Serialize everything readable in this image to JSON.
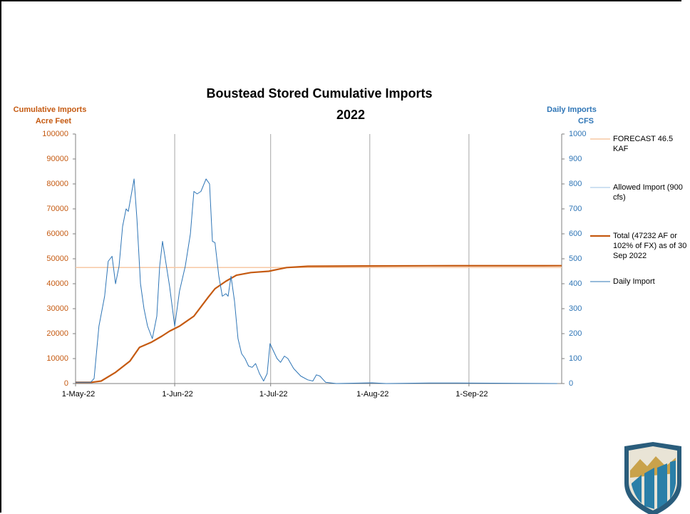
{
  "chart_data": {
    "type": "line",
    "title": [
      "Boustead Stored Cumulative Imports",
      "2022"
    ],
    "y_label": [
      "Cumulative Imports",
      "Acre Feet"
    ],
    "y2_label": [
      "Daily Imports",
      "CFS"
    ],
    "xlim": [
      0,
      152
    ],
    "xticks": [
      {
        "value": 0,
        "label": "1-May-22"
      },
      {
        "value": 31,
        "label": "1-Jun-22"
      },
      {
        "value": 61,
        "label": "1-Jul-22"
      },
      {
        "value": 92,
        "label": "1-Aug-22"
      },
      {
        "value": 123,
        "label": "1-Sep-22"
      }
    ],
    "ylim": [
      0,
      100000
    ],
    "yticks": [
      0,
      10000,
      20000,
      30000,
      40000,
      50000,
      60000,
      70000,
      80000,
      90000,
      100000
    ],
    "y2lim": [
      0,
      1000
    ],
    "y2ticks": [
      0,
      100,
      200,
      300,
      400,
      500,
      600,
      700,
      800,
      900,
      1000
    ],
    "grid": "x",
    "legend": "right",
    "series": [
      {
        "name": "FORECAST 46.5 KAF",
        "color": "#f7c8a4",
        "width": 1.5,
        "x": [
          0,
          152
        ],
        "values": [
          46500,
          46500
        ]
      },
      {
        "name": "Allowed Import (900 cfs)",
        "color": "#9dc3e6",
        "width": 1,
        "axis": "y2",
        "x": [],
        "values": []
      },
      {
        "name": "Total (47232 AF or 102% of FX) as of 30 Sep 2022",
        "color": "#c55a11",
        "width": 2.2,
        "x": [
          0,
          5,
          8,
          12.5,
          17,
          20,
          23.6,
          27,
          29.4,
          32.5,
          37,
          41.4,
          43.6,
          47,
          50.3,
          54.8,
          60.4,
          66,
          72.6,
          90,
          110,
          152
        ],
        "values": [
          500,
          500,
          1000,
          4500,
          9000,
          14500,
          16500,
          19000,
          21000,
          23000,
          27000,
          34500,
          38000,
          41000,
          43400,
          44500,
          45000,
          46500,
          47000,
          47100,
          47200,
          47232
        ]
      },
      {
        "name": "Daily Import",
        "color": "#2e75b6",
        "width": 1,
        "axis": "y2",
        "x": [
          0,
          4.7,
          5.8,
          7.3,
          9.1,
          10.2,
          11.4,
          12.5,
          13.6,
          14.7,
          15.8,
          16.5,
          18.3,
          19.2,
          20.3,
          21.4,
          22.5,
          24,
          25.4,
          26.3,
          27.2,
          29.4,
          31,
          32.5,
          34.3,
          35.9,
          37,
          38,
          39.2,
          40.8,
          41.9,
          42.8,
          43.6,
          44.8,
          45.9,
          47,
          47.7,
          48.6,
          49.7,
          50.8,
          51.9,
          53,
          54.1,
          55.2,
          56.3,
          57.5,
          58.8,
          59.9,
          60.8,
          61.9,
          63,
          64.1,
          65.3,
          66.4,
          68.2,
          70.4,
          72.6,
          74.2,
          75.3,
          76.4,
          78.2,
          81.5,
          92.7,
          97.1,
          110.5,
          119.4,
          150.6
        ],
        "values": [
          5,
          5,
          20,
          230,
          350,
          490,
          510,
          400,
          470,
          630,
          700,
          690,
          820,
          660,
          400,
          300,
          230,
          180,
          270,
          470,
          570,
          390,
          230,
          370,
          470,
          600,
          770,
          760,
          770,
          820,
          800,
          570,
          565,
          430,
          350,
          360,
          350,
          430,
          330,
          180,
          120,
          100,
          70,
          65,
          80,
          40,
          10,
          40,
          160,
          130,
          100,
          85,
          110,
          100,
          60,
          30,
          15,
          10,
          35,
          30,
          5,
          0,
          3,
          0,
          2,
          2,
          0
        ]
      }
    ]
  }
}
